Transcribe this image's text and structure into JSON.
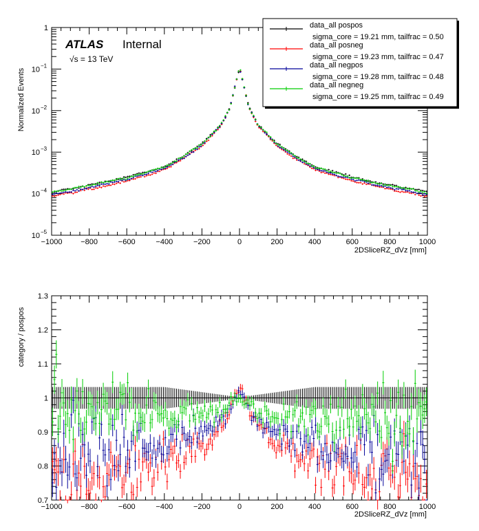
{
  "chart_data": [
    {
      "type": "scatter",
      "title": "",
      "annotation": {
        "experiment": "ATLAS",
        "status": "Internal",
        "energy": "√s = 13 TeV"
      },
      "xlabel": "2DSliceRZ_dVz [mm]",
      "ylabel": "Normalized Events",
      "xlim": [
        -1000,
        1000
      ],
      "ylim": [
        1e-05,
        1
      ],
      "yscale": "log",
      "xticks": [
        "−1000",
        "−800",
        "−600",
        "−400",
        "−200",
        "0",
        "200",
        "400",
        "600",
        "800",
        "1000"
      ],
      "yticks": [
        {
          "base": "10",
          "exp": "−5"
        },
        {
          "base": "10",
          "exp": "−4"
        },
        {
          "base": "10",
          "exp": "−3"
        },
        {
          "base": "10",
          "exp": "−2"
        },
        {
          "base": "10",
          "exp": "−1"
        },
        {
          "base": "1",
          "exp": ""
        }
      ],
      "x": [
        -1000,
        -800,
        -600,
        -400,
        -300,
        -200,
        -100,
        -50,
        -20,
        0,
        20,
        50,
        100,
        200,
        300,
        400,
        600,
        800,
        1000
      ],
      "series": [
        {
          "name": "data_all pospos",
          "detail": "sigma_core = 19.21 mm, tailfrac = 0.50",
          "color": "#000000",
          "values": [
            0.00011,
            0.00016,
            0.00025,
            0.00045,
            0.0008,
            0.0016,
            0.0045,
            0.012,
            0.045,
            0.11,
            0.045,
            0.012,
            0.0045,
            0.0016,
            0.0008,
            0.00045,
            0.00025,
            0.00016,
            0.00011
          ]
        },
        {
          "name": "data_all posneg",
          "detail": "sigma_core = 19.23 mm, tailfrac = 0.47",
          "color": "#ff0000",
          "values": [
            8.5e-05,
            0.00013,
            0.0002,
            0.00038,
            0.00068,
            0.0014,
            0.0041,
            0.0115,
            0.046,
            0.113,
            0.046,
            0.0115,
            0.0041,
            0.0014,
            0.00068,
            0.00038,
            0.0002,
            0.00013,
            8.5e-05
          ]
        },
        {
          "name": "data_all negpos",
          "detail": "sigma_core = 19.28 mm, tailfrac = 0.48",
          "color": "#000099",
          "values": [
            9.5e-05,
            0.000138,
            0.00022,
            0.0004,
            0.00072,
            0.00148,
            0.0043,
            0.0118,
            0.0455,
            0.112,
            0.0455,
            0.0118,
            0.0043,
            0.00148,
            0.00072,
            0.0004,
            0.00022,
            0.000138,
            9.5e-05
          ]
        },
        {
          "name": "data_all negneg",
          "detail": "sigma_core = 19.25 mm, tailfrac = 0.49",
          "color": "#00cc00",
          "values": [
            0.000105,
            0.000155,
            0.00024,
            0.00044,
            0.00078,
            0.00158,
            0.00445,
            0.012,
            0.0452,
            0.111,
            0.0452,
            0.012,
            0.00445,
            0.00158,
            0.00078,
            0.00044,
            0.00024,
            0.000155,
            0.000105
          ]
        }
      ]
    },
    {
      "type": "scatter",
      "title": "",
      "xlabel": "2DSliceRZ_dVz [mm]",
      "ylabel": "category / pospos",
      "xlim": [
        -1000,
        1000
      ],
      "ylim": [
        0.7,
        1.3
      ],
      "xticks": [
        "−1000",
        "−800",
        "−600",
        "−400",
        "−200",
        "0",
        "200",
        "400",
        "600",
        "800",
        "1000"
      ],
      "yticks": [
        "0.7",
        "0.8",
        "0.9",
        "1",
        "1.1",
        "1.2",
        "1.3"
      ],
      "x": [
        -1000,
        -800,
        -600,
        -400,
        -200,
        -100,
        -50,
        0,
        50,
        100,
        200,
        400,
        600,
        800,
        1000
      ],
      "series": [
        {
          "name": "pospos",
          "color": "#000000",
          "values": [
            1,
            1,
            1,
            1,
            1,
            1,
            1,
            1,
            1,
            1,
            1,
            1,
            1,
            1,
            1
          ]
        },
        {
          "name": "posneg",
          "color": "#ff0000",
          "values": [
            0.76,
            0.76,
            0.78,
            0.81,
            0.86,
            0.92,
            0.97,
            1.03,
            0.97,
            0.92,
            0.86,
            0.81,
            0.78,
            0.76,
            0.76
          ]
        },
        {
          "name": "negpos",
          "color": "#000099",
          "values": [
            0.83,
            0.84,
            0.85,
            0.87,
            0.9,
            0.93,
            0.97,
            1.02,
            0.97,
            0.93,
            0.9,
            0.87,
            0.85,
            0.84,
            0.84
          ]
        },
        {
          "name": "negneg",
          "color": "#00cc00",
          "values": [
            0.96,
            0.96,
            0.95,
            0.94,
            0.95,
            0.96,
            0.98,
            1.0,
            0.98,
            0.96,
            0.95,
            0.94,
            0.95,
            0.96,
            0.96
          ]
        }
      ]
    }
  ]
}
